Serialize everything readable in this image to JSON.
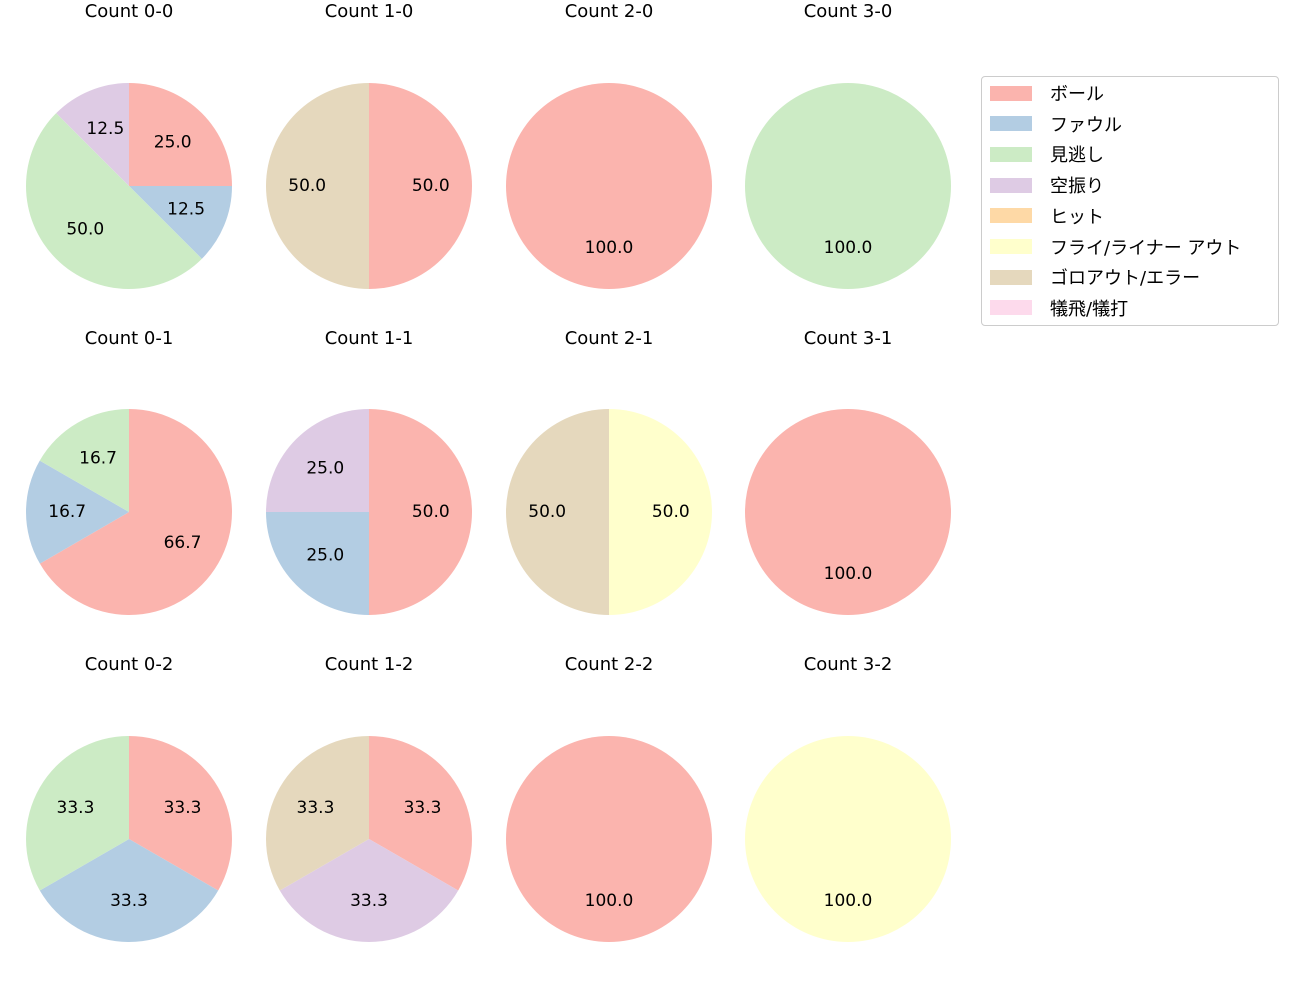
{
  "chart_data": {
    "type": "pie",
    "layout": {
      "rows": 3,
      "cols": 4,
      "start_angle": 90,
      "direction": "clockwise",
      "legend_position": "upper right"
    },
    "legend": [
      {
        "label": "ボール",
        "color": "#fbb4ae"
      },
      {
        "label": "ファウル",
        "color": "#b3cde3"
      },
      {
        "label": "見逃し",
        "color": "#ccebc5"
      },
      {
        "label": "空振り",
        "color": "#decbe4"
      },
      {
        "label": "ヒット",
        "color": "#fed9a6"
      },
      {
        "label": "フライ/ライナー アウト",
        "color": "#ffffcc"
      },
      {
        "label": "ゴロアウト/エラー",
        "color": "#e5d8bd"
      },
      {
        "label": "犠飛/犠打",
        "color": "#fddaec"
      }
    ],
    "charts": [
      {
        "title": "Count 0-0",
        "row": 0,
        "col": 0,
        "slices": [
          {
            "category": "ボール",
            "value": 25.0
          },
          {
            "category": "ファウル",
            "value": 12.5
          },
          {
            "category": "見逃し",
            "value": 50.0
          },
          {
            "category": "空振り",
            "value": 12.5
          }
        ]
      },
      {
        "title": "Count 1-0",
        "row": 0,
        "col": 1,
        "slices": [
          {
            "category": "ボール",
            "value": 50.0
          },
          {
            "category": "ゴロアウト/エラー",
            "value": 50.0
          }
        ]
      },
      {
        "title": "Count 2-0",
        "row": 0,
        "col": 2,
        "slices": [
          {
            "category": "ボール",
            "value": 100.0
          }
        ]
      },
      {
        "title": "Count 3-0",
        "row": 0,
        "col": 3,
        "slices": [
          {
            "category": "見逃し",
            "value": 100.0
          }
        ]
      },
      {
        "title": "Count 0-1",
        "row": 1,
        "col": 0,
        "slices": [
          {
            "category": "ボール",
            "value": 66.7
          },
          {
            "category": "ファウル",
            "value": 16.7
          },
          {
            "category": "見逃し",
            "value": 16.7
          }
        ]
      },
      {
        "title": "Count 1-1",
        "row": 1,
        "col": 1,
        "slices": [
          {
            "category": "ボール",
            "value": 50.0
          },
          {
            "category": "ファウル",
            "value": 25.0
          },
          {
            "category": "空振り",
            "value": 25.0
          }
        ]
      },
      {
        "title": "Count 2-1",
        "row": 1,
        "col": 2,
        "slices": [
          {
            "category": "フライ/ライナー アウト",
            "value": 50.0
          },
          {
            "category": "ゴロアウト/エラー",
            "value": 50.0
          }
        ]
      },
      {
        "title": "Count 3-1",
        "row": 1,
        "col": 3,
        "slices": [
          {
            "category": "ボール",
            "value": 100.0
          }
        ]
      },
      {
        "title": "Count 0-2",
        "row": 2,
        "col": 0,
        "slices": [
          {
            "category": "ボール",
            "value": 33.3
          },
          {
            "category": "ファウル",
            "value": 33.3
          },
          {
            "category": "見逃し",
            "value": 33.3
          }
        ]
      },
      {
        "title": "Count 1-2",
        "row": 2,
        "col": 1,
        "slices": [
          {
            "category": "ボール",
            "value": 33.3
          },
          {
            "category": "空振り",
            "value": 33.3
          },
          {
            "category": "ゴロアウト/エラー",
            "value": 33.3
          }
        ]
      },
      {
        "title": "Count 2-2",
        "row": 2,
        "col": 2,
        "slices": [
          {
            "category": "ボール",
            "value": 100.0
          }
        ]
      },
      {
        "title": "Count 3-2",
        "row": 2,
        "col": 3,
        "slices": [
          {
            "category": "フライ/ライナー アウト",
            "value": 100.0
          }
        ]
      }
    ]
  }
}
